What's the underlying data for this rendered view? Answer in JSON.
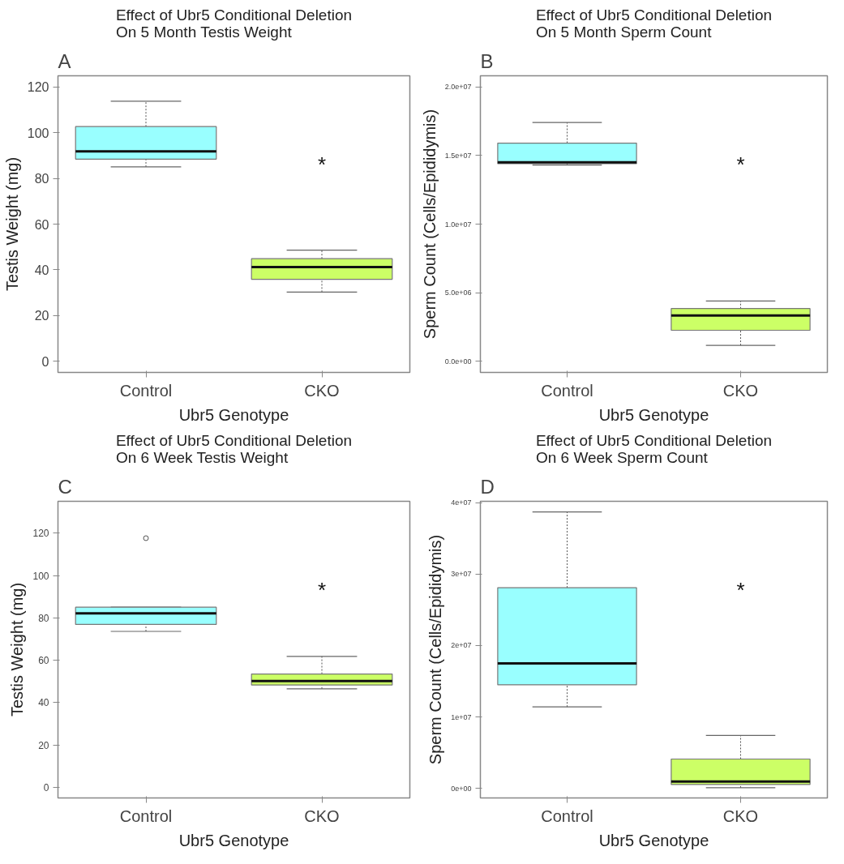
{
  "chart_data": [
    {
      "type": "box",
      "title": "Effect of Ubr5 Conditional Deletion\nOn 5 Month Testis Weight",
      "xlabel": "Ubr5 Genotype",
      "ylabel": "Testis Weight (mg)",
      "categories": [
        "Control",
        "CKO"
      ],
      "colors": [
        "#99ffff",
        "#ccff66"
      ],
      "boxes": [
        {
          "low": 85,
          "q1": 88.4,
          "median": 91.8,
          "q3": 102.6,
          "high": 113.7
        },
        {
          "low": 30.3,
          "q1": 35.9,
          "median": 41.2,
          "q3": 44.9,
          "high": 48.6
        }
      ],
      "ylim": [
        -4.8,
        124.8
      ],
      "yticks": [
        0,
        20,
        40,
        60,
        80,
        100,
        120
      ],
      "annotations": [
        "A",
        "*"
      ]
    },
    {
      "type": "box",
      "title": "Effect of Ubr5 Conditional Deletion\nOn 5 Month Sperm Count",
      "xlabel": "Ubr5 Genotype",
      "ylabel": "Sperm Count (Cells/Epididymis)",
      "categories": [
        "Control",
        "CKO"
      ],
      "colors": [
        "#99ffff",
        "#ccff66"
      ],
      "boxes": [
        {
          "low": 14300000,
          "q1": 14400000,
          "median": 14500000,
          "q3": 15900000,
          "high": 17400000
        },
        {
          "low": 1170000,
          "q1": 2270000,
          "median": 3350000,
          "q3": 3850000,
          "high": 4400000
        }
      ],
      "ylim": [
        -800000,
        20800000
      ],
      "yticks": [
        {
          "value": 0,
          "label": "0.0e+00"
        },
        {
          "value": 5000000,
          "label": "5.0e+06"
        },
        {
          "value": 10000000,
          "label": "1.0e+07"
        },
        {
          "value": 15000000,
          "label": "1.5e+07"
        },
        {
          "value": 20000000,
          "label": "2.0e+07"
        }
      ],
      "annotations": [
        "B",
        "*"
      ]
    },
    {
      "type": "box",
      "title": "Effect of Ubr5 Conditional Deletion\nOn 6 Week Testis Weight",
      "xlabel": "Ubr5 Genotype",
      "ylabel": "Testis Weight (mg)",
      "categories": [
        "Control",
        "CKO"
      ],
      "colors": [
        "#99ffff",
        "#ccff66"
      ],
      "boxes": [
        {
          "low": 73.6,
          "q1": 76.9,
          "median": 82.1,
          "q3": 85,
          "high": 85,
          "outliers": [
            117.6
          ]
        },
        {
          "low": 46.5,
          "q1": 48.3,
          "median": 50.2,
          "q3": 53.5,
          "high": 61.8
        }
      ],
      "ylim": [
        -5,
        135
      ],
      "yticks": [
        0,
        20,
        40,
        60,
        80,
        100,
        120
      ],
      "annotations": [
        "C",
        "*"
      ]
    },
    {
      "type": "box",
      "title": "Effect of Ubr5 Conditional Deletion\nOn 6 Week Sperm Count",
      "xlabel": "Ubr5 Genotype",
      "ylabel": "Sperm Count (Cells/Epididymis)",
      "categories": [
        "Control",
        "CKO"
      ],
      "colors": [
        "#99ffff",
        "#ccff66"
      ],
      "boxes": [
        {
          "low": 11400000,
          "q1": 14500000,
          "median": 17500000,
          "q3": 28100000,
          "high": 38700000
        },
        {
          "low": 80000,
          "q1": 530000,
          "median": 940000,
          "q3": 4100000,
          "high": 7400000
        }
      ],
      "ylim": [
        -1350000,
        40200000
      ],
      "yticks": [
        {
          "value": 0,
          "label": "0e+00"
        },
        {
          "value": 10000000,
          "label": "1e+07"
        },
        {
          "value": 20000000,
          "label": "2e+07"
        },
        {
          "value": 30000000,
          "label": "3e+07"
        },
        {
          "value": 40000000,
          "label": "4e+07"
        }
      ],
      "annotations": [
        "D",
        "*"
      ]
    }
  ]
}
